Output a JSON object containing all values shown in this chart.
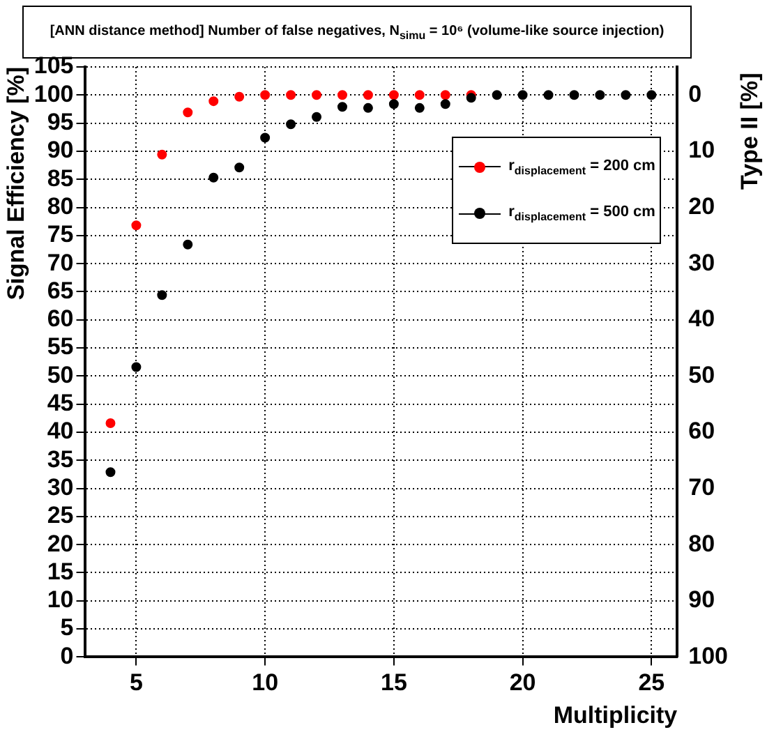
{
  "chart_data": {
    "type": "scatter",
    "title": "[ANN distance method] Number of false negatives, N$_{simu}$ = 10⁶ (volume-like source injection)",
    "xlabel": "Multiplicity",
    "ylabel": "Signal Efficiency [%]",
    "y2label": "Type II [%]",
    "x": [
      4,
      5,
      6,
      7,
      8,
      9,
      10,
      11,
      12,
      13,
      14,
      15,
      16,
      17,
      18,
      19,
      20,
      21,
      22,
      23,
      24,
      25
    ],
    "series": [
      {
        "name": "r$_{displacement}$ = 200 cm",
        "color": "#ff0000",
        "values": [
          41.6,
          76.8,
          89.4,
          96.9,
          98.9,
          99.7,
          100,
          100,
          100,
          100,
          100,
          100,
          100,
          100,
          100,
          null,
          null,
          null,
          null,
          null,
          null,
          null
        ]
      },
      {
        "name": "r$_{displacement}$ = 500 cm",
        "color": "#000000",
        "values": [
          32.9,
          51.6,
          64.4,
          73.4,
          85.3,
          87.1,
          92.4,
          94.8,
          96.1,
          97.9,
          97.7,
          98.4,
          97.7,
          98.4,
          99.5,
          100,
          100,
          100,
          100,
          100,
          100,
          100
        ]
      }
    ],
    "xlim": [
      3,
      26
    ],
    "xticks": [
      5,
      10,
      15,
      20,
      25
    ],
    "ylim": [
      0,
      105
    ],
    "yticks": [
      0,
      5,
      10,
      15,
      20,
      25,
      30,
      35,
      40,
      45,
      50,
      55,
      60,
      65,
      70,
      75,
      80,
      85,
      90,
      95,
      100,
      105
    ],
    "y2lim": [
      100,
      -5
    ],
    "y2ticks": [
      0,
      10,
      20,
      30,
      40,
      50,
      60,
      70,
      80,
      90,
      100
    ],
    "grid": true,
    "legend": "top right",
    "marker": "circle"
  }
}
